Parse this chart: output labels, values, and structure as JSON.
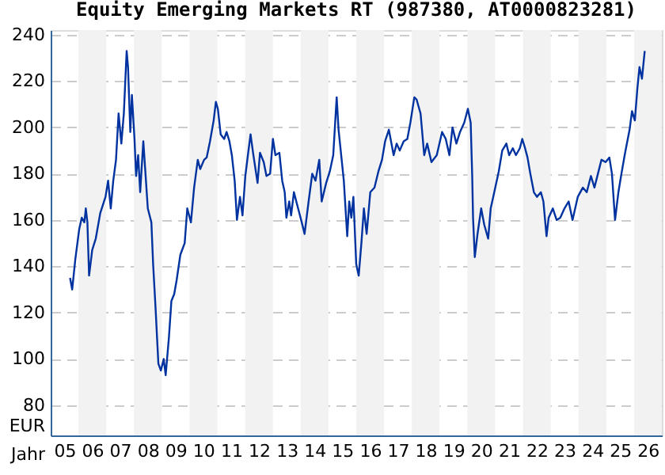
{
  "chart_data": {
    "type": "line",
    "title": "Equity Emerging Markets RT (987380, AT0000823281)",
    "xlabel": "Jahr",
    "ylabel": "EUR",
    "xlim": [
      "2005-01-01",
      "2027-01-01"
    ],
    "ylim": [
      67,
      242
    ],
    "xticks": [
      {
        "value": "2005-07-01",
        "label": "05"
      },
      {
        "value": "2006-07-01",
        "label": "06"
      },
      {
        "value": "2007-07-01",
        "label": "07"
      },
      {
        "value": "2008-07-01",
        "label": "08"
      },
      {
        "value": "2009-07-01",
        "label": "09"
      },
      {
        "value": "2010-07-01",
        "label": "10"
      },
      {
        "value": "2011-07-01",
        "label": "11"
      },
      {
        "value": "2012-07-01",
        "label": "12"
      },
      {
        "value": "2013-07-01",
        "label": "13"
      },
      {
        "value": "2014-07-01",
        "label": "14"
      },
      {
        "value": "2015-07-01",
        "label": "15"
      },
      {
        "value": "2016-07-01",
        "label": "16"
      },
      {
        "value": "2017-07-01",
        "label": "17"
      },
      {
        "value": "2018-07-01",
        "label": "18"
      },
      {
        "value": "2019-07-01",
        "label": "19"
      },
      {
        "value": "2020-07-01",
        "label": "20"
      },
      {
        "value": "2021-07-01",
        "label": "21"
      },
      {
        "value": "2022-07-01",
        "label": "22"
      },
      {
        "value": "2023-07-01",
        "label": "23"
      },
      {
        "value": "2024-07-01",
        "label": "24"
      },
      {
        "value": "2025-07-01",
        "label": "25"
      },
      {
        "value": "2026-07-01",
        "label": "26"
      }
    ],
    "yticks": [
      80,
      100,
      120,
      140,
      160,
      180,
      200,
      220,
      240
    ],
    "grid": "y",
    "line_style": "solid",
    "marker": "none",
    "bands": [
      {
        "axis": "x",
        "from": "2006-01-01",
        "to": "2007-01-01",
        "color": "#f2f2f2"
      },
      {
        "axis": "x",
        "from": "2008-01-01",
        "to": "2009-01-01",
        "color": "#f2f2f2"
      },
      {
        "axis": "x",
        "from": "2010-01-01",
        "to": "2011-01-01",
        "color": "#f2f2f2"
      },
      {
        "axis": "x",
        "from": "2012-01-01",
        "to": "2013-01-01",
        "color": "#f2f2f2"
      },
      {
        "axis": "x",
        "from": "2014-01-01",
        "to": "2015-01-01",
        "color": "#f2f2f2"
      },
      {
        "axis": "x",
        "from": "2016-01-01",
        "to": "2017-01-01",
        "color": "#f2f2f2"
      },
      {
        "axis": "x",
        "from": "2018-01-01",
        "to": "2019-01-01",
        "color": "#f2f2f2"
      },
      {
        "axis": "x",
        "from": "2020-01-01",
        "to": "2021-01-01",
        "color": "#f2f2f2"
      },
      {
        "axis": "x",
        "from": "2022-01-01",
        "to": "2023-01-01",
        "color": "#f2f2f2"
      },
      {
        "axis": "x",
        "from": "2024-01-01",
        "to": "2025-01-01",
        "color": "#f2f2f2"
      },
      {
        "axis": "x",
        "from": "2026-01-01",
        "to": "2027-01-01",
        "color": "#f2f2f2"
      }
    ],
    "series": [
      {
        "color": "#0033a0",
        "x": [
          "2005-09-13",
          "2005-10-11",
          "2005-11-21",
          "2006-01-11",
          "2006-02-14",
          "2006-03-20",
          "2006-04-08",
          "2006-04-29",
          "2006-05-21",
          "2006-07-01",
          "2006-08-17",
          "2006-10-15",
          "2006-12-23",
          "2007-01-26",
          "2007-03-02",
          "2007-04-04",
          "2007-05-10",
          "2007-06-13",
          "2007-07-19",
          "2007-08-21",
          "2007-09-27",
          "2007-10-15",
          "2007-11-14",
          "2007-12-05",
          "2008-01-08",
          "2008-01-29",
          "2008-02-25",
          "2008-03-23",
          "2008-05-03",
          "2008-07-01",
          "2008-08-17",
          "2008-09-09",
          "2008-10-11",
          "2008-11-17",
          "2008-12-20",
          "2009-01-26",
          "2009-02-21",
          "2009-04-04",
          "2009-05-07",
          "2009-06-13",
          "2009-07-15",
          "2009-09-02",
          "2009-10-29",
          "2009-12-02",
          "2010-01-19",
          "2010-03-02",
          "2010-04-19",
          "2010-05-21",
          "2010-07-11",
          "2010-08-14",
          "2010-09-27",
          "2010-11-14",
          "2010-12-13",
          "2011-01-08",
          "2011-02-14",
          "2011-04-01",
          "2011-05-03",
          "2011-06-09",
          "2011-07-11",
          "2011-08-17",
          "2011-09-16",
          "2011-10-26",
          "2011-11-28",
          "2012-01-04",
          "2012-02-07",
          "2012-03-13",
          "2012-04-15",
          "2012-06-13",
          "2012-07-15",
          "2012-09-02",
          "2012-10-08",
          "2012-11-25",
          "2013-01-01",
          "2013-02-03",
          "2013-03-27",
          "2013-05-03",
          "2013-06-05",
          "2013-06-27",
          "2013-08-03",
          "2013-08-28",
          "2013-10-04",
          "2013-11-28",
          "2014-01-15",
          "2014-02-21",
          "2014-04-15",
          "2014-06-02",
          "2014-07-15",
          "2014-09-02",
          "2014-10-04",
          "2014-12-02",
          "2015-01-19",
          "2015-03-05",
          "2015-04-19",
          "2015-05-14",
          "2015-07-22",
          "2015-09-05",
          "2015-10-01",
          "2015-10-29",
          "2015-11-25",
          "2016-01-01",
          "2016-02-03",
          "2016-03-09",
          "2016-04-11",
          "2016-05-17",
          "2016-07-04",
          "2016-08-28",
          "2016-10-19",
          "2016-12-05",
          "2017-01-15",
          "2017-03-05",
          "2017-05-07",
          "2017-06-16",
          "2017-07-26",
          "2017-09-16",
          "2017-11-03",
          "2017-12-13",
          "2018-02-03",
          "2018-03-05",
          "2018-04-26",
          "2018-06-13",
          "2018-07-22",
          "2018-09-16",
          "2018-11-25",
          "2019-02-03",
          "2019-03-23",
          "2019-05-10",
          "2019-06-20",
          "2019-08-10",
          "2019-09-27",
          "2019-11-21",
          "2020-01-08",
          "2020-02-14",
          "2020-03-05",
          "2020-03-16",
          "2020-04-08",
          "2020-05-14",
          "2020-07-01",
          "2020-08-10",
          "2020-10-01",
          "2020-11-03",
          "2020-12-20",
          "2021-02-17",
          "2021-04-04",
          "2021-05-28",
          "2021-07-04",
          "2021-08-21",
          "2021-10-01",
          "2021-11-21",
          "2021-12-23",
          "2022-01-29",
          "2022-03-02",
          "2022-04-08",
          "2022-05-25",
          "2022-07-04",
          "2022-08-25",
          "2022-09-27",
          "2022-11-07",
          "2022-12-05",
          "2023-01-29",
          "2023-03-20",
          "2023-05-07",
          "2023-07-01",
          "2023-08-25",
          "2023-10-15",
          "2023-12-23",
          "2024-02-28",
          "2024-04-19",
          "2024-06-13",
          "2024-07-29",
          "2024-09-13",
          "2024-10-29",
          "2024-12-23",
          "2025-02-10",
          "2025-03-16",
          "2025-04-26",
          "2025-06-09",
          "2025-07-19",
          "2025-09-05",
          "2025-11-03",
          "2025-12-05",
          "2026-01-11",
          "2026-02-14",
          "2026-03-13",
          "2026-04-15",
          "2026-05-21"
        ],
        "values": [
          135,
          130,
          143,
          156,
          161,
          159,
          165,
          159,
          136,
          147,
          152,
          163,
          170,
          177,
          165,
          177,
          186,
          206,
          193,
          206,
          233,
          226,
          198,
          214,
          195,
          179,
          188,
          172,
          194,
          165,
          159,
          141,
          122,
          98,
          95,
          100,
          93,
          109,
          125,
          128,
          134,
          145,
          150,
          165,
          159,
          174,
          186,
          182,
          186,
          187,
          194,
          203,
          211,
          208,
          197,
          195,
          198,
          194,
          188,
          177,
          160,
          170,
          162,
          179,
          188,
          197,
          189,
          176,
          189,
          185,
          179,
          180,
          195,
          188,
          189,
          177,
          172,
          161,
          168,
          162,
          172,
          165,
          159,
          154,
          168,
          180,
          177,
          186,
          168,
          176,
          181,
          188,
          213,
          199,
          177,
          153,
          168,
          161,
          170,
          141,
          136,
          150,
          165,
          154,
          172,
          174,
          181,
          186,
          194,
          199,
          188,
          193,
          190,
          194,
          195,
          202,
          213,
          212,
          206,
          188,
          193,
          185,
          188,
          198,
          195,
          188,
          200,
          193,
          198,
          202,
          208,
          202,
          179,
          161,
          144,
          154,
          165,
          158,
          152,
          165,
          172,
          181,
          190,
          193,
          188,
          191,
          188,
          191,
          195,
          191,
          187,
          180,
          172,
          170,
          172,
          168,
          153,
          161,
          165,
          160,
          161,
          165,
          168,
          160,
          170,
          174,
          172,
          179,
          174,
          180,
          186,
          185,
          187,
          180,
          160,
          172,
          180,
          189,
          199,
          207,
          203,
          217,
          226,
          221,
          233
        ]
      }
    ]
  }
}
